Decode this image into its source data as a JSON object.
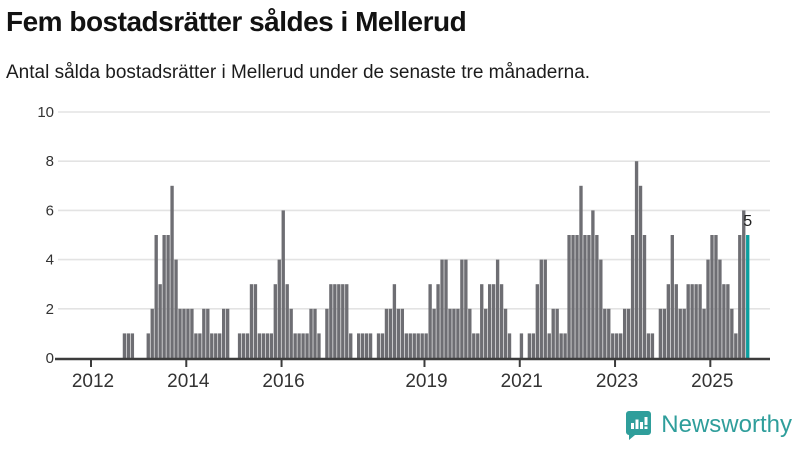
{
  "header": {
    "title": "Fem bostadsrätter såldes i Mellerud",
    "subtitle": "Antal sålda bostadsrätter i Mellerud under de senaste tre månaderna."
  },
  "footer": {
    "brand": "Newsworthy",
    "logo_icon": "speech-bubble-bar-chart-icon",
    "brand_color": "#2f9e9b"
  },
  "chart_data": {
    "type": "bar",
    "title": "Fem bostadsrätter såldes i Mellerud",
    "subtitle": "Antal sålda bostadsrätter i Mellerud under de senaste tre månaderna.",
    "frequency": "monthly",
    "x_start": "2011-04",
    "x_end": "2025-10",
    "ylim": [
      0,
      10
    ],
    "yticks": [
      0,
      2,
      4,
      6,
      8,
      10
    ],
    "grid": true,
    "xticks": [
      {
        "label": "2012",
        "year": 2012
      },
      {
        "label": "2014",
        "year": 2014
      },
      {
        "label": "2016",
        "year": 2016
      },
      {
        "label": "2019",
        "year": 2019
      },
      {
        "label": "2021",
        "year": 2021
      },
      {
        "label": "2023",
        "year": 2023
      },
      {
        "label": "2025",
        "year": 2025
      }
    ],
    "last_value_label": "5",
    "highlight_last": true,
    "values": [
      0,
      0,
      0,
      0,
      0,
      0,
      0,
      0,
      0,
      0,
      0,
      0,
      0,
      0,
      0,
      0,
      0,
      1,
      1,
      1,
      0,
      0,
      0,
      1,
      2,
      5,
      3,
      5,
      5,
      7,
      4,
      2,
      2,
      2,
      2,
      1,
      1,
      2,
      2,
      1,
      1,
      1,
      2,
      2,
      0,
      0,
      1,
      1,
      1,
      3,
      3,
      1,
      1,
      1,
      1,
      3,
      4,
      6,
      3,
      2,
      1,
      1,
      1,
      1,
      2,
      2,
      1,
      0,
      2,
      3,
      3,
      3,
      3,
      3,
      1,
      0,
      1,
      1,
      1,
      1,
      0,
      1,
      1,
      2,
      2,
      3,
      2,
      2,
      1,
      1,
      1,
      1,
      1,
      1,
      3,
      2,
      3,
      4,
      4,
      2,
      2,
      2,
      4,
      4,
      2,
      1,
      1,
      3,
      2,
      3,
      3,
      4,
      3,
      2,
      1,
      0,
      0,
      1,
      0,
      1,
      1,
      3,
      4,
      4,
      1,
      2,
      2,
      1,
      1,
      5,
      5,
      5,
      7,
      5,
      5,
      6,
      5,
      4,
      2,
      2,
      1,
      1,
      1,
      2,
      2,
      5,
      8,
      7,
      5,
      1,
      1,
      0,
      2,
      2,
      3,
      5,
      3,
      2,
      2,
      3,
      3,
      3,
      3,
      2,
      4,
      5,
      5,
      4,
      3,
      3,
      2,
      1,
      5,
      6,
      5
    ],
    "colors": {
      "bar": "#6e6e73",
      "highlight": "#0b9f9f",
      "grid": "#e3e3e3",
      "axis": "#3c3c3c",
      "tick_text": "#333333",
      "value_label": "#222222"
    }
  }
}
